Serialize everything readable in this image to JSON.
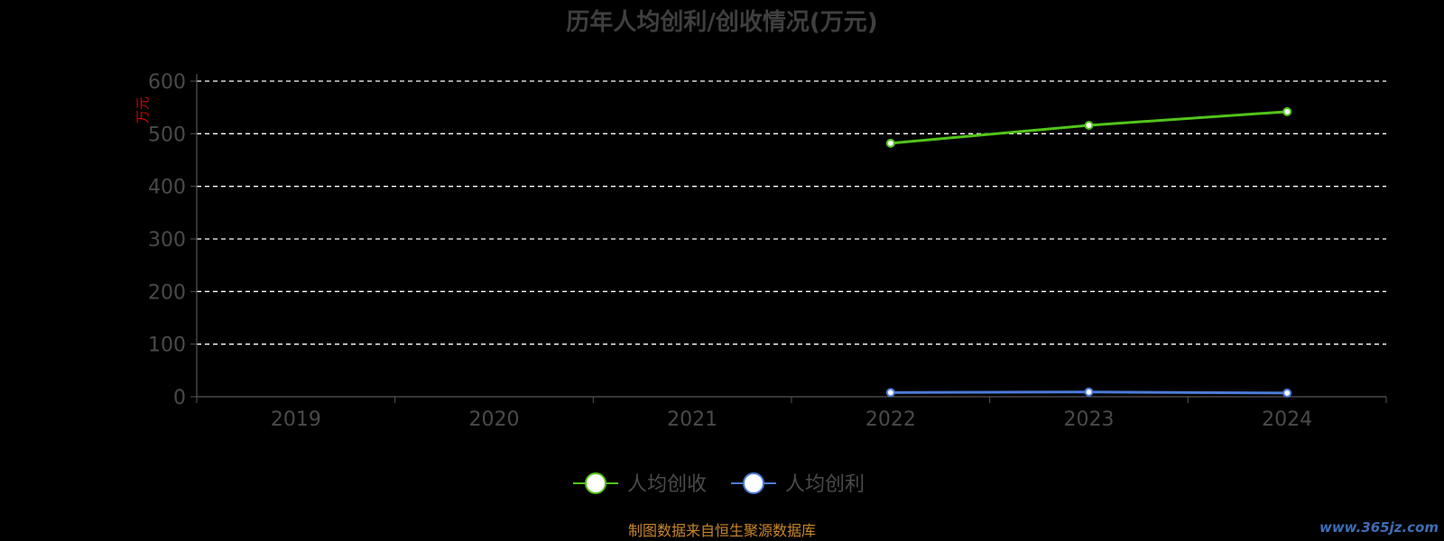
{
  "chart_data": {
    "type": "line",
    "title": "历年人均创利/创收情况(万元)",
    "ylabel": "万元",
    "xlabel": "",
    "categories": [
      "2019",
      "2020",
      "2021",
      "2022",
      "2023",
      "2024"
    ],
    "ylim": [
      0,
      600
    ],
    "yticks": [
      "0",
      "100",
      "200",
      "300",
      "400",
      "500",
      "600"
    ],
    "grid": true,
    "legend_position": "bottom",
    "series": [
      {
        "name": "人均创收",
        "color": "#52c41a",
        "values": [
          null,
          null,
          null,
          482,
          516,
          542
        ],
        "labels": [
          "",
          "",
          "",
          "",
          "",
          ""
        ]
      },
      {
        "name": "人均创利",
        "color": "#4a7bd8",
        "values": [
          null,
          null,
          null,
          8,
          9,
          7
        ],
        "labels": [
          "",
          "",
          "",
          "",
          "",
          ""
        ]
      }
    ]
  },
  "footer": {
    "source": "制图数据来自恒生聚源数据库",
    "watermark": "www.365jz.com"
  }
}
